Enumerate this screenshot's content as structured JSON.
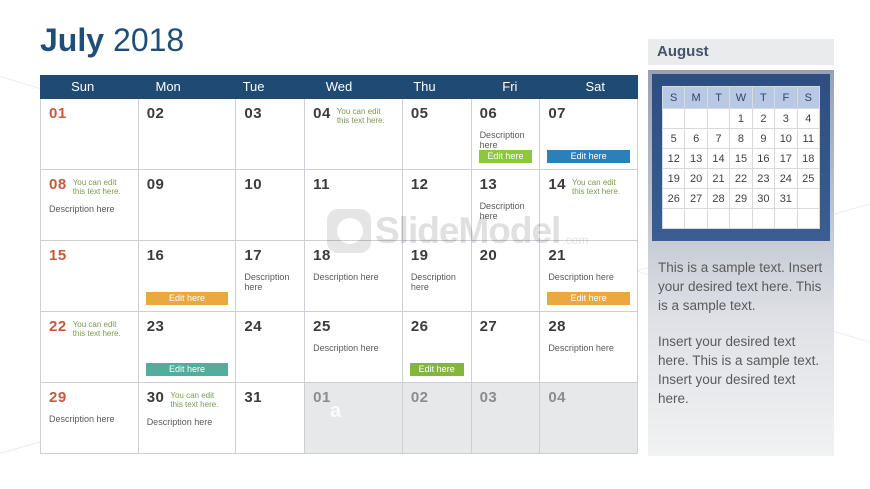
{
  "title": {
    "month": "July",
    "year": "2018"
  },
  "strings": {
    "note": "You can edit this text here.",
    "description": "Description here",
    "button": "Edit here"
  },
  "calendar": {
    "weekdays": [
      "Sun",
      "Mon",
      "Tue",
      "Wed",
      "Thu",
      "Fri",
      "Sat"
    ],
    "weeks": [
      [
        "01",
        "02",
        "03",
        "04",
        "05",
        "06",
        "07"
      ],
      [
        "08",
        "09",
        "10",
        "11",
        "12",
        "13",
        "14"
      ],
      [
        "15",
        "16",
        "17",
        "18",
        "19",
        "20",
        "21"
      ],
      [
        "22",
        "23",
        "24",
        "25",
        "26",
        "27",
        "28"
      ],
      [
        "29",
        "30",
        "31",
        "01",
        "02",
        "03",
        "04"
      ]
    ]
  },
  "sidebar": {
    "month_label": "August",
    "mini": {
      "header": [
        "S",
        "M",
        "T",
        "W",
        "T",
        "F",
        "S"
      ],
      "rows": [
        [
          "",
          "",
          "",
          "1",
          "2",
          "3",
          "4"
        ],
        [
          "5",
          "6",
          "7",
          "8",
          "9",
          "10",
          "11"
        ],
        [
          "12",
          "13",
          "14",
          "15",
          "16",
          "17",
          "18"
        ],
        [
          "19",
          "20",
          "21",
          "22",
          "23",
          "24",
          "25"
        ],
        [
          "26",
          "27",
          "28",
          "29",
          "30",
          "31",
          ""
        ],
        [
          "",
          "",
          "",
          "",
          "",
          "",
          ""
        ]
      ]
    },
    "text1": "This is a sample text. Insert your desired text here. This is a sample text.",
    "text2": "Insert your desired text here. This is a sample text. Insert your desired text here."
  },
  "watermark": {
    "name": "SlideModel",
    "tld": ".com",
    "stray": "a"
  },
  "colors": {
    "title_navy": "#1F4E79",
    "header_bar": "#1F4A73",
    "sunday_number": "#C8593C",
    "note_green": "#7A9A4F",
    "description_grey": "#595959",
    "muted_cell_bg": "#E7E8E9",
    "btn_green": "#8DC63F",
    "btn_blue": "#2C80B9",
    "btn_orange": "#E9A93E",
    "btn_teal": "#52AE9B",
    "mini_header_bg": "#B7C9E5",
    "mini_frame_navy": "#2C4E80"
  }
}
